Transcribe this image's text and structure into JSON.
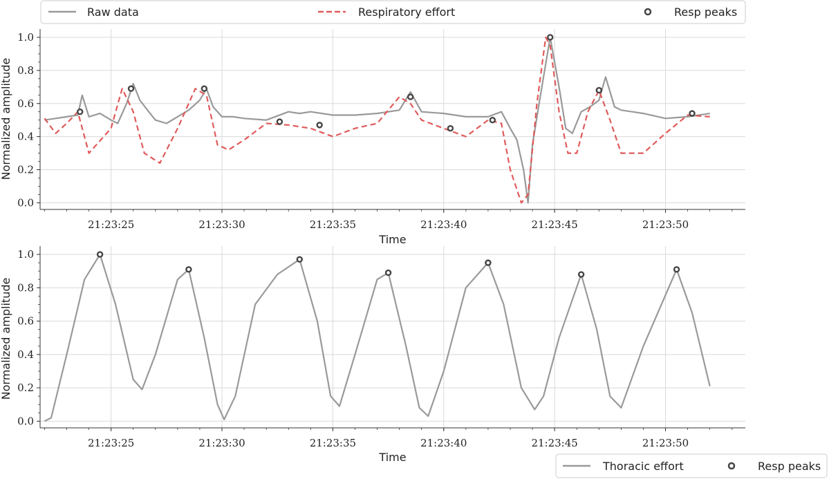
{
  "chart_data": [
    {
      "type": "line",
      "xlabel": "Time",
      "ylabel": "Normalized amplitude",
      "xlim": [
        "21:23:21.8",
        "21:23:53.6"
      ],
      "ylim": [
        -0.04,
        1.05
      ],
      "x_ticks": [
        "21:23:25",
        "21:23:30",
        "21:23:35",
        "21:23:40",
        "21:23:45",
        "21:23:50"
      ],
      "y_ticks": [
        "0.0",
        "0.2",
        "0.4",
        "0.6",
        "0.8",
        "1.0"
      ],
      "grid": true,
      "legend_position": "top",
      "legend_entries": [
        "Raw data",
        "Respiratory effort",
        "Resp peaks"
      ],
      "colors": {
        "raw": "#999999",
        "effort": "#e05a5a",
        "peaks": "#444444"
      },
      "series": [
        {
          "name": "Raw data",
          "style": "solid",
          "x": [
            "21:23:22.0",
            "21:23:22.5",
            "21:23:23.0",
            "21:23:23.5",
            "21:23:23.7",
            "21:23:24.0",
            "21:23:24.5",
            "21:23:25.0",
            "21:23:25.3",
            "21:23:25.7",
            "21:23:26.0",
            "21:23:26.3",
            "21:23:26.7",
            "21:23:27.0",
            "21:23:27.5",
            "21:23:28.0",
            "21:23:28.5",
            "21:23:29.0",
            "21:23:29.3",
            "21:23:29.6",
            "21:23:30.0",
            "21:23:30.5",
            "21:23:31.0",
            "21:23:32.0",
            "21:23:33.0",
            "21:23:33.5",
            "21:23:34.0",
            "21:23:35.0",
            "21:23:36.0",
            "21:23:37.0",
            "21:23:38.0",
            "21:23:38.5",
            "21:23:39.0",
            "21:23:40.0",
            "21:23:41.0",
            "21:23:42.0",
            "21:23:42.6",
            "21:23:43.0",
            "21:23:43.3",
            "21:23:43.6",
            "21:23:43.8",
            "21:23:44.0",
            "21:23:44.3",
            "21:23:44.8",
            "21:23:45.2",
            "21:23:45.5",
            "21:23:45.8",
            "21:23:46.2",
            "21:23:46.6",
            "21:23:47.0",
            "21:23:47.3",
            "21:23:47.7",
            "21:23:48.0",
            "21:23:48.5",
            "21:23:49.0",
            "21:23:50.0",
            "21:23:51.0",
            "21:23:52.0"
          ],
          "y": [
            0.5,
            0.51,
            0.52,
            0.53,
            0.65,
            0.52,
            0.54,
            0.5,
            0.48,
            0.6,
            0.72,
            0.62,
            0.55,
            0.5,
            0.48,
            0.52,
            0.56,
            0.62,
            0.69,
            0.58,
            0.52,
            0.52,
            0.51,
            0.5,
            0.55,
            0.54,
            0.55,
            0.53,
            0.53,
            0.54,
            0.56,
            0.67,
            0.55,
            0.54,
            0.52,
            0.52,
            0.55,
            0.45,
            0.38,
            0.2,
            0.0,
            0.35,
            0.6,
            1.0,
            0.7,
            0.45,
            0.42,
            0.55,
            0.58,
            0.62,
            0.76,
            0.58,
            0.56,
            0.55,
            0.54,
            0.51,
            0.52,
            0.54
          ]
        },
        {
          "name": "Respiratory effort",
          "style": "dashed",
          "x": [
            "21:23:22.0",
            "21:23:22.5",
            "21:23:23.0",
            "21:23:23.5",
            "21:23:24.0",
            "21:23:25.0",
            "21:23:25.5",
            "21:23:26.0",
            "21:23:26.5",
            "21:23:27.2",
            "21:23:28.0",
            "21:23:28.8",
            "21:23:29.3",
            "21:23:29.8",
            "21:23:30.3",
            "21:23:31.0",
            "21:23:32.0",
            "21:23:33.0",
            "21:23:34.0",
            "21:23:35.0",
            "21:23:36.0",
            "21:23:37.0",
            "21:23:38.0",
            "21:23:38.5",
            "21:23:39.0",
            "21:23:40.0",
            "21:23:41.0",
            "21:23:42.0",
            "21:23:42.6",
            "21:23:43.0",
            "21:23:43.5",
            "21:23:43.8",
            "21:23:44.2",
            "21:23:44.6",
            "21:23:44.8",
            "21:23:45.2",
            "21:23:45.6",
            "21:23:46.0",
            "21:23:46.5",
            "21:23:47.0",
            "21:23:47.5",
            "21:23:48.0",
            "21:23:49.0",
            "21:23:50.0",
            "21:23:51.0",
            "21:23:52.0"
          ],
          "y": [
            0.51,
            0.42,
            0.48,
            0.55,
            0.3,
            0.45,
            0.69,
            0.55,
            0.3,
            0.24,
            0.45,
            0.69,
            0.65,
            0.35,
            0.32,
            0.38,
            0.48,
            0.47,
            0.45,
            0.4,
            0.45,
            0.48,
            0.64,
            0.6,
            0.5,
            0.45,
            0.4,
            0.5,
            0.48,
            0.2,
            0.0,
            0.05,
            0.6,
            1.0,
            0.95,
            0.55,
            0.3,
            0.3,
            0.55,
            0.68,
            0.5,
            0.3,
            0.3,
            0.42,
            0.53,
            0.52
          ]
        }
      ],
      "peaks": {
        "name": "Resp peaks",
        "x": [
          "21:23:23.6",
          "21:23:25.9",
          "21:23:29.2",
          "21:23:32.6",
          "21:23:34.4",
          "21:23:38.5",
          "21:23:40.3",
          "21:23:42.2",
          "21:23:44.8",
          "21:23:47.0",
          "21:23:51.2"
        ],
        "y": [
          0.55,
          0.69,
          0.69,
          0.49,
          0.47,
          0.64,
          0.45,
          0.5,
          1.0,
          0.68,
          0.54
        ]
      }
    },
    {
      "type": "line",
      "xlabel": "Time",
      "ylabel": "Normalized amplitude",
      "xlim": [
        "21:23:21.8",
        "21:23:53.6"
      ],
      "ylim": [
        -0.04,
        1.05
      ],
      "x_ticks": [
        "21:23:25",
        "21:23:30",
        "21:23:35",
        "21:23:40",
        "21:23:45",
        "21:23:50"
      ],
      "y_ticks": [
        "0.0",
        "0.2",
        "0.4",
        "0.6",
        "0.8",
        "1.0"
      ],
      "grid": true,
      "legend_position": "bottom-right",
      "legend_entries": [
        "Thoracic effort",
        "Resp peaks"
      ],
      "colors": {
        "effort": "#999999",
        "peaks": "#444444"
      },
      "series": [
        {
          "name": "Thoracic effort",
          "style": "solid",
          "x": [
            "21:23:22.0",
            "21:23:22.3",
            "21:23:23.0",
            "21:23:23.8",
            "21:23:24.5",
            "21:23:25.2",
            "21:23:26.0",
            "21:23:26.4",
            "21:23:27.0",
            "21:23:28.0",
            "21:23:28.5",
            "21:23:29.2",
            "21:23:29.8",
            "21:23:30.1",
            "21:23:30.6",
            "21:23:31.5",
            "21:23:32.5",
            "21:23:33.5",
            "21:23:34.3",
            "21:23:34.9",
            "21:23:35.3",
            "21:23:36.0",
            "21:23:37.0",
            "21:23:37.5",
            "21:23:38.3",
            "21:23:38.9",
            "21:23:39.3",
            "21:23:40.0",
            "21:23:41.0",
            "21:23:42.0",
            "21:23:42.7",
            "21:23:43.5",
            "21:23:44.1",
            "21:23:44.5",
            "21:23:45.2",
            "21:23:46.2",
            "21:23:46.9",
            "21:23:47.5",
            "21:23:48.0",
            "21:23:49.0",
            "21:23:50.5",
            "21:23:51.2",
            "21:23:52.0"
          ],
          "y": [
            0.0,
            0.02,
            0.4,
            0.85,
            1.0,
            0.7,
            0.25,
            0.19,
            0.4,
            0.85,
            0.91,
            0.5,
            0.1,
            0.01,
            0.15,
            0.7,
            0.88,
            0.97,
            0.6,
            0.15,
            0.09,
            0.4,
            0.85,
            0.89,
            0.45,
            0.08,
            0.03,
            0.3,
            0.8,
            0.95,
            0.7,
            0.2,
            0.07,
            0.15,
            0.5,
            0.88,
            0.55,
            0.15,
            0.08,
            0.45,
            0.91,
            0.65,
            0.21
          ]
        }
      ],
      "peaks": {
        "name": "Resp peaks",
        "x": [
          "21:23:24.5",
          "21:23:28.5",
          "21:23:33.5",
          "21:23:37.5",
          "21:23:42.0",
          "21:23:46.2",
          "21:23:50.5"
        ],
        "y": [
          1.0,
          0.91,
          0.97,
          0.89,
          0.95,
          0.88,
          0.91
        ]
      }
    }
  ]
}
